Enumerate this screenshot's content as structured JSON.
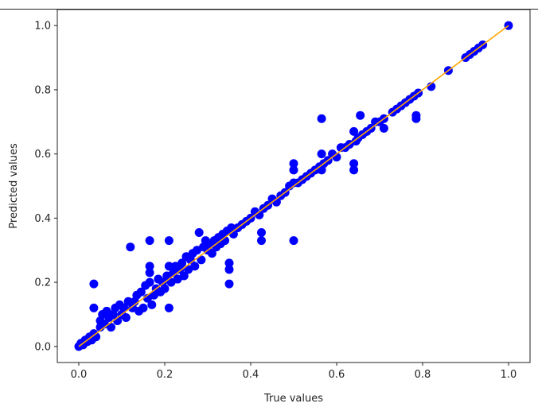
{
  "chart_data": {
    "type": "scatter",
    "title": "",
    "xlabel": "True values",
    "ylabel": "Predicted values",
    "xlim": [
      -0.05,
      1.05
    ],
    "ylim": [
      -0.05,
      1.05
    ],
    "xticks": [
      "0.0",
      "0.2",
      "0.4",
      "0.6",
      "0.8",
      "1.0"
    ],
    "yticks": [
      "0.0",
      "0.2",
      "0.4",
      "0.6",
      "0.8",
      "1.0"
    ],
    "grid": false,
    "point_color": "#0000ff",
    "line_color": "#ffa500",
    "reference_line": {
      "x": [
        0,
        1
      ],
      "y": [
        0,
        1
      ]
    },
    "points": [
      [
        0,
        0
      ],
      [
        0.005,
        0.01
      ],
      [
        0.01,
        0.005
      ],
      [
        0.015,
        0.02
      ],
      [
        0.02,
        0.015
      ],
      [
        0.025,
        0.03
      ],
      [
        0.03,
        0.02
      ],
      [
        0.035,
        0.04
      ],
      [
        0.04,
        0.03
      ],
      [
        0.035,
        0.195
      ],
      [
        0.035,
        0.12
      ],
      [
        0.05,
        0.06
      ],
      [
        0.05,
        0.08
      ],
      [
        0.055,
        0.1
      ],
      [
        0.06,
        0.07
      ],
      [
        0.065,
        0.11
      ],
      [
        0.07,
        0.09
      ],
      [
        0.075,
        0.06
      ],
      [
        0.08,
        0.1
      ],
      [
        0.085,
        0.12
      ],
      [
        0.09,
        0.08
      ],
      [
        0.095,
        0.13
      ],
      [
        0.1,
        0.1
      ],
      [
        0.105,
        0.12
      ],
      [
        0.11,
        0.09
      ],
      [
        0.115,
        0.14
      ],
      [
        0.12,
        0.31
      ],
      [
        0.125,
        0.12
      ],
      [
        0.13,
        0.14
      ],
      [
        0.135,
        0.16
      ],
      [
        0.14,
        0.11
      ],
      [
        0.145,
        0.17
      ],
      [
        0.15,
        0.12
      ],
      [
        0.155,
        0.19
      ],
      [
        0.16,
        0.15
      ],
      [
        0.165,
        0.33
      ],
      [
        0.165,
        0.25
      ],
      [
        0.165,
        0.23
      ],
      [
        0.165,
        0.2
      ],
      [
        0.17,
        0.13
      ],
      [
        0.175,
        0.16
      ],
      [
        0.18,
        0.18
      ],
      [
        0.185,
        0.21
      ],
      [
        0.19,
        0.17
      ],
      [
        0.195,
        0.2
      ],
      [
        0.2,
        0.18
      ],
      [
        0.205,
        0.22
      ],
      [
        0.21,
        0.33
      ],
      [
        0.21,
        0.25
      ],
      [
        0.21,
        0.12
      ],
      [
        0.215,
        0.2
      ],
      [
        0.22,
        0.23
      ],
      [
        0.225,
        0.25
      ],
      [
        0.23,
        0.21
      ],
      [
        0.235,
        0.24
      ],
      [
        0.24,
        0.26
      ],
      [
        0.245,
        0.22
      ],
      [
        0.25,
        0.28
      ],
      [
        0.255,
        0.24
      ],
      [
        0.26,
        0.27
      ],
      [
        0.265,
        0.29
      ],
      [
        0.27,
        0.25
      ],
      [
        0.275,
        0.3
      ],
      [
        0.28,
        0.355
      ],
      [
        0.285,
        0.27
      ],
      [
        0.29,
        0.31
      ],
      [
        0.295,
        0.33
      ],
      [
        0.3,
        0.3
      ],
      [
        0.305,
        0.32
      ],
      [
        0.31,
        0.29
      ],
      [
        0.315,
        0.33
      ],
      [
        0.32,
        0.31
      ],
      [
        0.325,
        0.34
      ],
      [
        0.33,
        0.32
      ],
      [
        0.335,
        0.35
      ],
      [
        0.34,
        0.33
      ],
      [
        0.345,
        0.36
      ],
      [
        0.35,
        0.26
      ],
      [
        0.35,
        0.24
      ],
      [
        0.35,
        0.195
      ],
      [
        0.355,
        0.37
      ],
      [
        0.36,
        0.35
      ],
      [
        0.37,
        0.37
      ],
      [
        0.38,
        0.38
      ],
      [
        0.39,
        0.39
      ],
      [
        0.4,
        0.4
      ],
      [
        0.41,
        0.42
      ],
      [
        0.42,
        0.41
      ],
      [
        0.425,
        0.355
      ],
      [
        0.425,
        0.33
      ],
      [
        0.43,
        0.43
      ],
      [
        0.44,
        0.44
      ],
      [
        0.45,
        0.46
      ],
      [
        0.46,
        0.45
      ],
      [
        0.47,
        0.47
      ],
      [
        0.48,
        0.48
      ],
      [
        0.49,
        0.5
      ],
      [
        0.5,
        0.57
      ],
      [
        0.5,
        0.55
      ],
      [
        0.5,
        0.33
      ],
      [
        0.5,
        0.51
      ],
      [
        0.51,
        0.51
      ],
      [
        0.52,
        0.52
      ],
      [
        0.53,
        0.53
      ],
      [
        0.54,
        0.54
      ],
      [
        0.55,
        0.55
      ],
      [
        0.56,
        0.56
      ],
      [
        0.565,
        0.71
      ],
      [
        0.565,
        0.6
      ],
      [
        0.565,
        0.55
      ],
      [
        0.57,
        0.57
      ],
      [
        0.58,
        0.58
      ],
      [
        0.59,
        0.6
      ],
      [
        0.6,
        0.59
      ],
      [
        0.61,
        0.62
      ],
      [
        0.62,
        0.62
      ],
      [
        0.63,
        0.63
      ],
      [
        0.64,
        0.67
      ],
      [
        0.64,
        0.57
      ],
      [
        0.64,
        0.55
      ],
      [
        0.645,
        0.64
      ],
      [
        0.65,
        0.65
      ],
      [
        0.655,
        0.72
      ],
      [
        0.66,
        0.66
      ],
      [
        0.67,
        0.67
      ],
      [
        0.68,
        0.68
      ],
      [
        0.69,
        0.7
      ],
      [
        0.7,
        0.7
      ],
      [
        0.71,
        0.68
      ],
      [
        0.71,
        0.71
      ],
      [
        0.73,
        0.73
      ],
      [
        0.74,
        0.74
      ],
      [
        0.75,
        0.75
      ],
      [
        0.76,
        0.76
      ],
      [
        0.77,
        0.77
      ],
      [
        0.78,
        0.78
      ],
      [
        0.785,
        0.72
      ],
      [
        0.785,
        0.71
      ],
      [
        0.79,
        0.79
      ],
      [
        0.82,
        0.81
      ],
      [
        0.86,
        0.86
      ],
      [
        0.9,
        0.9
      ],
      [
        0.91,
        0.91
      ],
      [
        0.92,
        0.92
      ],
      [
        0.93,
        0.93
      ],
      [
        0.94,
        0.94
      ],
      [
        1.0,
        1.0
      ]
    ]
  }
}
